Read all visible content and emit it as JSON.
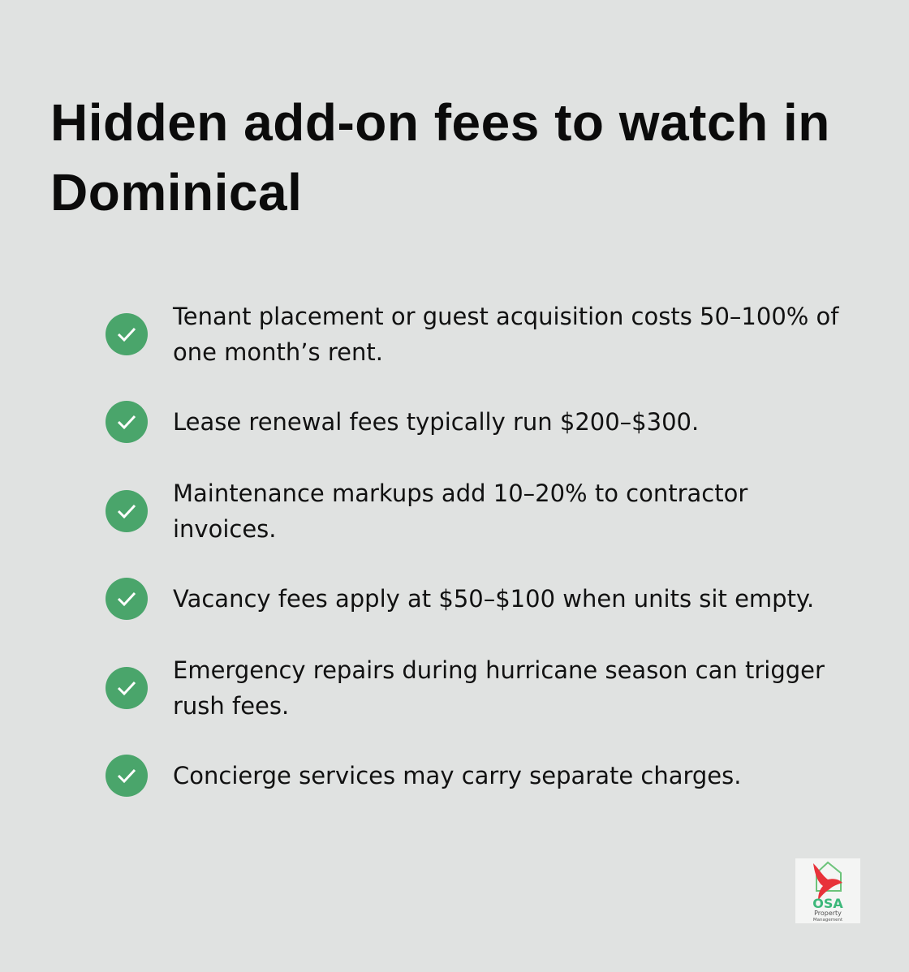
{
  "title": "Hidden add-on fees to watch in Dominical",
  "items": [
    {
      "text": "Tenant placement or guest acquisition costs 50–100% of one month’s rent."
    },
    {
      "text": "Lease renewal fees typically run $200–$300."
    },
    {
      "text": "Maintenance markups add 10–20% to contractor invoices."
    },
    {
      "text": "Vacancy fees apply at $50–$100 when units sit empty."
    },
    {
      "text": "Emergency repairs during hurricane season can trigger rush fees."
    },
    {
      "text": "Concierge services may carry separate charges."
    }
  ],
  "icon": "check-circle-icon",
  "colors": {
    "accent": "#4aa56b",
    "background": "#e0e2e1"
  },
  "logo": {
    "name": "OSA",
    "line1": "Property",
    "line2": "Management"
  }
}
